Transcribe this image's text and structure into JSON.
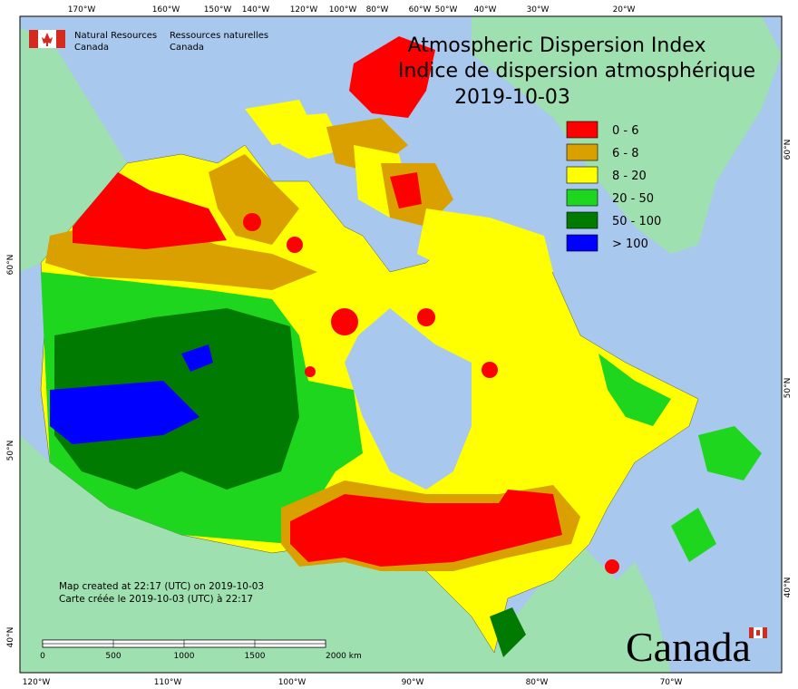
{
  "header": {
    "en_line1": "Natural Resources",
    "en_line2": "Canada",
    "fr_line1": "Ressources naturelles",
    "fr_line2": "Canada"
  },
  "title": {
    "line1": "Atmospheric Dispersion Index",
    "line2": "Indice de dispersion atmosphérique",
    "date": "2019-10-03"
  },
  "legend": [
    {
      "label": "0 - 6",
      "color": "#ff0000"
    },
    {
      "label": "6 - 8",
      "color": "#d9a000"
    },
    {
      "label": "8 - 20",
      "color": "#ffff00"
    },
    {
      "label": "20 - 50",
      "color": "#1fd61f"
    },
    {
      "label": "50 - 100",
      "color": "#007a00"
    },
    {
      "label": "> 100",
      "color": "#0000ff"
    }
  ],
  "graticule": {
    "top": [
      "170°W",
      "160°W",
      "150°W",
      "140°W",
      "120°W",
      "100°W",
      "80°W",
      "60°W",
      "50°W",
      "40°W",
      "30°W",
      "20°W"
    ],
    "bottom": [
      "120°W",
      "110°W",
      "100°W",
      "90°W",
      "80°W",
      "70°W"
    ],
    "left": [
      "60°N",
      "50°N",
      "40°N"
    ],
    "right": [
      "60°N",
      "50°N",
      "40°N"
    ]
  },
  "notes": [
    "Map created at 22:17 (UTC) on 2019-10-03",
    "Carte créée le 2019-10-03 (UTC) à 22:17"
  ],
  "scale_bar": {
    "labels": [
      "0",
      "500",
      "1000",
      "1500",
      "2000 km"
    ]
  },
  "wordmark": "Canada"
}
